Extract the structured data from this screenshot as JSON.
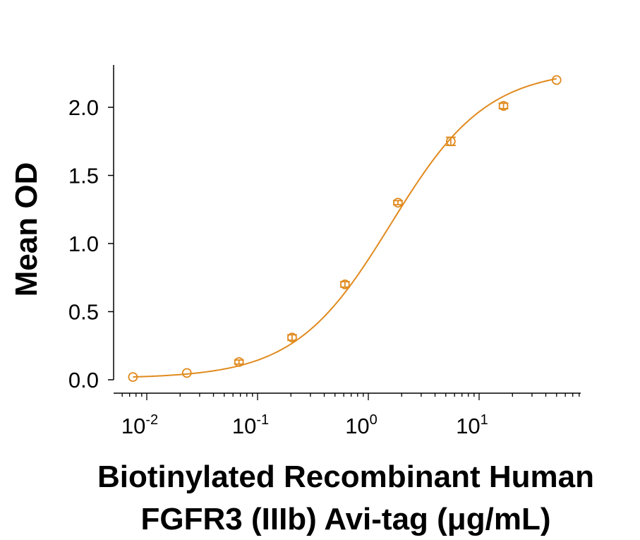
{
  "chart_data": {
    "type": "scatter",
    "title": "",
    "xlabel_lines": [
      "Biotinylated Recombinant Human",
      "FGFR3 (IIIb) Avi-tag (μg/mL)"
    ],
    "ylabel": "Mean OD",
    "xscale": "log",
    "xlim": [
      0.006,
      70
    ],
    "ylim": [
      0.0,
      2.3
    ],
    "x_ticks": [
      {
        "value": 0.01,
        "base": "10",
        "exp": "-2"
      },
      {
        "value": 0.1,
        "base": "10",
        "exp": "-1"
      },
      {
        "value": 1,
        "base": "10",
        "exp": "0"
      },
      {
        "value": 10,
        "base": "10",
        "exp": "1"
      }
    ],
    "y_ticks": [
      {
        "value": 0.0,
        "label": "0.0"
      },
      {
        "value": 0.5,
        "label": "0.5"
      },
      {
        "value": 1.0,
        "label": "1.0"
      },
      {
        "value": 1.5,
        "label": "1.5"
      },
      {
        "value": 2.0,
        "label": "2.0"
      }
    ],
    "series": [
      {
        "color": "#E08A1E",
        "marker": "open-circle",
        "points": [
          {
            "x": 0.0075,
            "y": 0.02,
            "err": 0.0
          },
          {
            "x": 0.023,
            "y": 0.05,
            "err": 0.0
          },
          {
            "x": 0.068,
            "y": 0.13,
            "err": 0.015
          },
          {
            "x": 0.205,
            "y": 0.31,
            "err": 0.02
          },
          {
            "x": 0.615,
            "y": 0.7,
            "err": 0.02
          },
          {
            "x": 1.85,
            "y": 1.3,
            "err": 0.015
          },
          {
            "x": 5.55,
            "y": 1.75,
            "err": 0.03
          },
          {
            "x": 16.6,
            "y": 2.01,
            "err": 0.02
          },
          {
            "x": 50,
            "y": 2.2,
            "err": 0.0
          }
        ]
      }
    ],
    "fit_curve": {
      "model": "4PL",
      "bottom": 0.01,
      "top": 2.28,
      "ec50": 1.6,
      "hill": 1.0
    },
    "grid": false,
    "legend": "none"
  }
}
